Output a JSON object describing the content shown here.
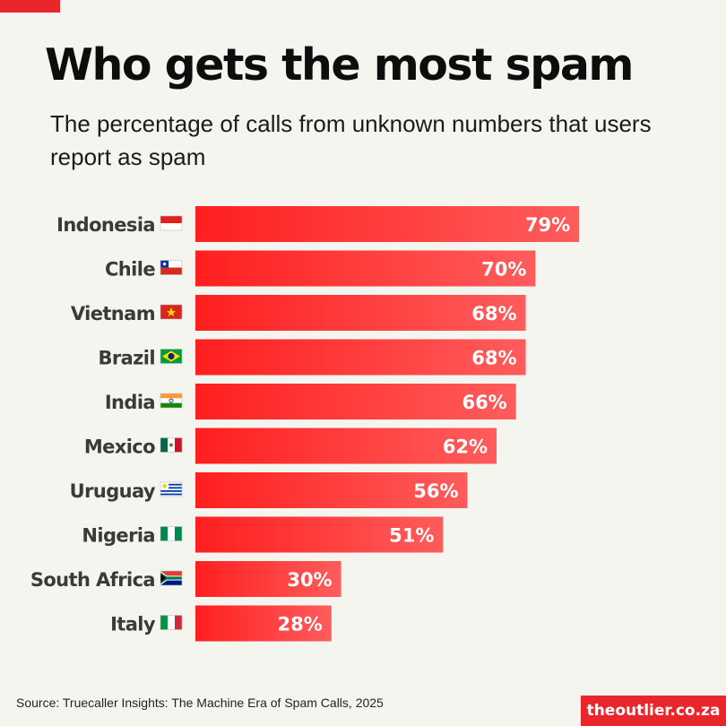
{
  "header": {
    "title": "Who gets the most spam",
    "subtitle": "The percentage of calls from unknown numbers that users report as spam"
  },
  "colors": {
    "accent": "#e8262b",
    "bar_start": "#ff1f1f",
    "bar_end": "#ff5c5c",
    "background": "#f5f5f0",
    "label_text": "#3a3a3a"
  },
  "chart_data": {
    "type": "bar",
    "orientation": "horizontal",
    "categories": [
      "Indonesia",
      "Chile",
      "Vietnam",
      "Brazil",
      "India",
      "Mexico",
      "Uruguay",
      "Nigeria",
      "South Africa",
      "Italy"
    ],
    "flags": [
      "indonesia-flag-icon",
      "chile-flag-icon",
      "vietnam-flag-icon",
      "brazil-flag-icon",
      "india-flag-icon",
      "mexico-flag-icon",
      "uruguay-flag-icon",
      "nigeria-flag-icon",
      "south-africa-flag-icon",
      "italy-flag-icon"
    ],
    "values": [
      79,
      70,
      68,
      68,
      66,
      62,
      56,
      51,
      30,
      28
    ],
    "value_labels": [
      "79%",
      "70%",
      "68%",
      "68%",
      "66%",
      "62%",
      "56%",
      "51%",
      "30%",
      "28%"
    ],
    "xlim": [
      0,
      100
    ],
    "grid": false,
    "legend": "none"
  },
  "footer": {
    "source": "Source: Truecaller Insights: The Machine Era of Spam Calls, 2025",
    "brand": "theoutlier.co.za"
  }
}
